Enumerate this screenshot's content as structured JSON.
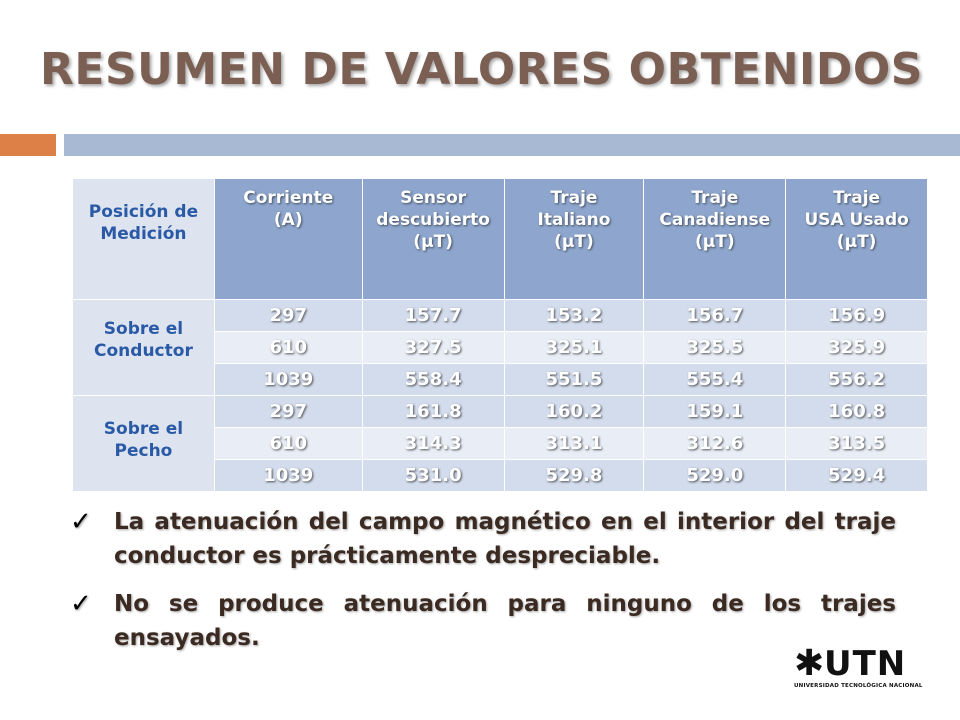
{
  "title": "RESUMEN DE VALORES OBTENIDOS",
  "table": {
    "headers": [
      [
        "Posición de",
        "Medición"
      ],
      [
        "Corriente",
        "(A)"
      ],
      [
        "Sensor",
        "descubierto",
        "(μT)"
      ],
      [
        "Traje",
        "Italiano",
        "(μT)"
      ],
      [
        "Traje",
        "Canadiense",
        "(μT)"
      ],
      [
        "Traje",
        "USA Usado",
        "(μT)"
      ]
    ],
    "groups": [
      {
        "label": [
          "Sobre el",
          "Conductor"
        ],
        "rows": [
          [
            "297",
            "157.7",
            "153.2",
            "156.7",
            "156.9"
          ],
          [
            "610",
            "327.5",
            "325.1",
            "325.5",
            "325.9"
          ],
          [
            "1039",
            "558.4",
            "551.5",
            "555.4",
            "556.2"
          ]
        ]
      },
      {
        "label": [
          "Sobre el",
          "Pecho"
        ],
        "rows": [
          [
            "297",
            "161.8",
            "160.2",
            "159.1",
            "160.8"
          ],
          [
            "610",
            "314.3",
            "313.1",
            "312.6",
            "313.5"
          ],
          [
            "1039",
            "531.0",
            "529.8",
            "529.0",
            "529.4"
          ]
        ]
      }
    ]
  },
  "bullets": [
    "La atenuación del campo magnético en el interior del traje conductor es prácticamente despreciable.",
    "No se produce atenuación para ninguno de los trajes ensayados."
  ],
  "logo": {
    "mark": "✱",
    "name": "UTN",
    "subtitle": "UNIVERSIDAD TECNOLÓGICA NACIONAL"
  },
  "icons": {
    "check": "check-icon"
  },
  "colors": {
    "title": "#7a5f52",
    "accent_bar": "#dd8047",
    "main_bar": "#a8b9d3",
    "header_bg": "#8ea6cd",
    "group_text": "#2a5aa6"
  }
}
